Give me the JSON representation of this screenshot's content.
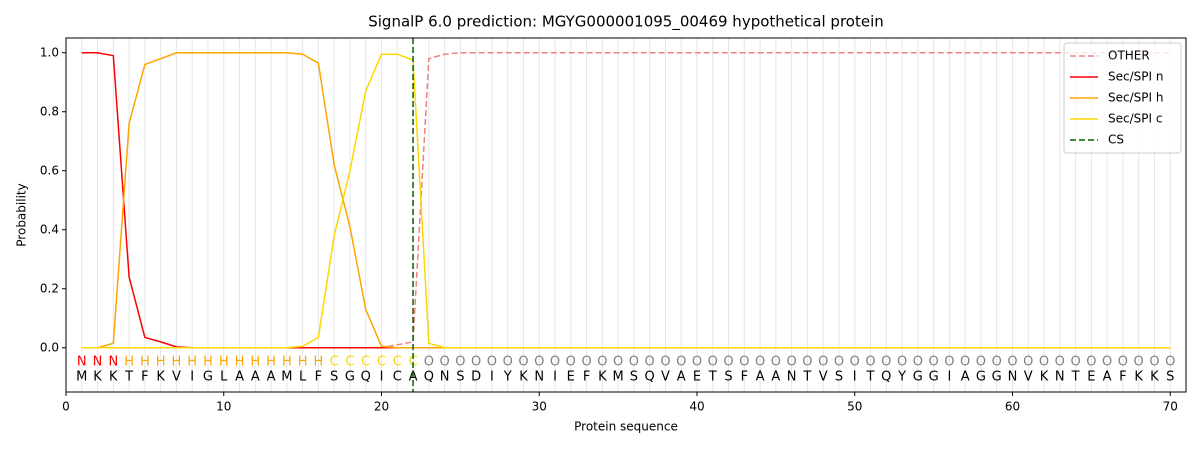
{
  "chart_data": {
    "type": "line",
    "title": "SignalP 6.0 prediction: MGYG000001095_00469 hypothetical protein",
    "xlabel": "Protein sequence",
    "ylabel": "Probability",
    "xlim": [
      0,
      71
    ],
    "ylim": [
      -0.15,
      1.05
    ],
    "xticks": [
      0,
      10,
      20,
      30,
      40,
      50,
      60,
      70
    ],
    "yticks": [
      {
        "value": 0,
        "label": "0.0"
      },
      {
        "value": 0.2,
        "label": "0.2"
      },
      {
        "value": 0.4,
        "label": "0.4"
      },
      {
        "value": 0.6,
        "label": "0.6"
      },
      {
        "value": 0.8,
        "label": "0.8"
      },
      {
        "value": 1,
        "label": "1.0"
      }
    ],
    "x_grid": true,
    "legend": "upper right",
    "x": [
      1,
      2,
      3,
      4,
      5,
      6,
      7,
      8,
      9,
      10,
      11,
      12,
      13,
      14,
      15,
      16,
      17,
      18,
      19,
      20,
      21,
      22,
      23,
      24,
      25,
      26,
      27,
      28,
      29,
      30,
      31,
      32,
      33,
      34,
      35,
      36,
      37,
      38,
      39,
      40,
      41,
      42,
      43,
      44,
      45,
      46,
      47,
      48,
      49,
      50,
      51,
      52,
      53,
      54,
      55,
      56,
      57,
      58,
      59,
      60,
      61,
      62,
      63,
      64,
      65,
      66,
      67,
      68,
      69,
      70
    ],
    "series": [
      {
        "name": "OTHER",
        "color": "#f08080",
        "dash": true,
        "values": [
          0,
          0,
          0,
          0,
          0,
          0,
          0,
          0,
          0,
          0,
          0,
          0,
          0,
          0,
          0,
          0,
          0,
          0,
          0,
          0,
          0.01,
          0.02,
          0.98,
          0.995,
          1,
          1,
          1,
          1,
          1,
          1,
          1,
          1,
          1,
          1,
          1,
          1,
          1,
          1,
          1,
          1,
          1,
          1,
          1,
          1,
          1,
          1,
          1,
          1,
          1,
          1,
          1,
          1,
          1,
          1,
          1,
          1,
          1,
          1,
          1,
          1,
          1,
          1,
          1,
          1,
          1,
          1,
          1,
          1,
          1,
          1
        ]
      },
      {
        "name": "Sec/SPI n",
        "color": "#ff0000",
        "dash": false,
        "values": [
          1,
          1,
          0.99,
          0.24,
          0.035,
          0.02,
          0.003,
          0,
          0,
          0,
          0,
          0,
          0,
          0,
          0,
          0,
          0,
          0,
          0,
          0,
          0,
          0,
          0,
          0,
          0,
          0,
          0,
          0,
          0,
          0,
          0,
          0,
          0,
          0,
          0,
          0,
          0,
          0,
          0,
          0,
          0,
          0,
          0,
          0,
          0,
          0,
          0,
          0,
          0,
          0,
          0,
          0,
          0,
          0,
          0,
          0,
          0,
          0,
          0,
          0,
          0,
          0,
          0,
          0,
          0,
          0,
          0,
          0,
          0,
          0
        ]
      },
      {
        "name": "Sec/SPI h",
        "color": "#ffa500",
        "dash": false,
        "values": [
          0,
          0,
          0.015,
          0.76,
          0.96,
          0.98,
          1,
          1,
          1,
          1,
          1,
          1,
          1,
          1,
          0.995,
          0.965,
          0.62,
          0.41,
          0.13,
          0.005,
          0,
          0,
          0,
          0,
          0,
          0,
          0,
          0,
          0,
          0,
          0,
          0,
          0,
          0,
          0,
          0,
          0,
          0,
          0,
          0,
          0,
          0,
          0,
          0,
          0,
          0,
          0,
          0,
          0,
          0,
          0,
          0,
          0,
          0,
          0,
          0,
          0,
          0,
          0,
          0,
          0,
          0,
          0,
          0,
          0,
          0,
          0,
          0,
          0,
          0
        ]
      },
      {
        "name": "Sec/SPI c",
        "color": "#ffd700",
        "dash": false,
        "values": [
          0,
          0,
          0,
          0,
          0,
          0,
          0,
          0,
          0,
          0,
          0,
          0,
          0,
          0,
          0.005,
          0.035,
          0.38,
          0.6,
          0.87,
          0.995,
          0.995,
          0.975,
          0.015,
          0,
          0,
          0,
          0,
          0,
          0,
          0,
          0,
          0,
          0,
          0,
          0,
          0,
          0,
          0,
          0,
          0,
          0,
          0,
          0,
          0,
          0,
          0,
          0,
          0,
          0,
          0,
          0,
          0,
          0,
          0,
          0,
          0,
          0,
          0,
          0,
          0,
          0,
          0,
          0,
          0,
          0,
          0,
          0,
          0,
          0,
          0
        ]
      }
    ],
    "cs": {
      "name": "CS",
      "x": 22,
      "color": "#006400"
    },
    "region_labels": [
      "N",
      "N",
      "N",
      "H",
      "H",
      "H",
      "H",
      "H",
      "H",
      "H",
      "H",
      "H",
      "H",
      "H",
      "H",
      "H",
      "C",
      "C",
      "C",
      "C",
      "C",
      "C",
      "O",
      "O",
      "O",
      "O",
      "O",
      "O",
      "O",
      "O",
      "O",
      "O",
      "O",
      "O",
      "O",
      "O",
      "O",
      "O",
      "O",
      "O",
      "O",
      "O",
      "O",
      "O",
      "O",
      "O",
      "O",
      "O",
      "O",
      "O",
      "O",
      "O",
      "O",
      "O",
      "O",
      "O",
      "O",
      "O",
      "O",
      "O",
      "O",
      "O",
      "O",
      "O",
      "O",
      "O",
      "O",
      "O",
      "O",
      "O"
    ],
    "region_colors": {
      "N": "#ff0000",
      "H": "#ffa500",
      "C": "#ffd700",
      "O": "#808080"
    },
    "residues": [
      "M",
      "K",
      "K",
      "T",
      "F",
      "K",
      "V",
      "I",
      "G",
      "L",
      "A",
      "A",
      "A",
      "M",
      "L",
      "F",
      "S",
      "G",
      "Q",
      "I",
      "C",
      "A",
      "Q",
      "N",
      "S",
      "D",
      "I",
      "Y",
      "K",
      "N",
      "I",
      "E",
      "F",
      "K",
      "M",
      "S",
      "Q",
      "V",
      "A",
      "E",
      "T",
      "S",
      "F",
      "A",
      "A",
      "N",
      "T",
      "V",
      "S",
      "I",
      "T",
      "Q",
      "Y",
      "G",
      "G",
      "I",
      "A",
      "G",
      "G",
      "N",
      "V",
      "K",
      "N",
      "T",
      "E",
      "A",
      "F",
      "K",
      "K",
      "S"
    ]
  }
}
